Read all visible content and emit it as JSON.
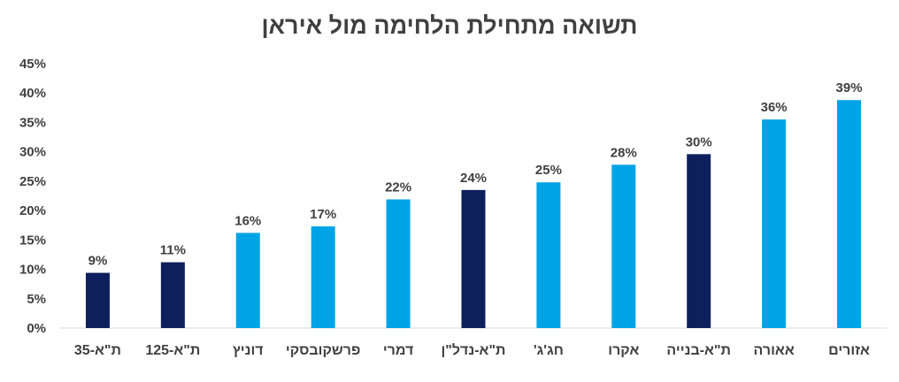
{
  "chart_data": {
    "type": "bar",
    "title": "תשואה מתחילת הלחימה מול איראן",
    "xlabel": "",
    "ylabel": "",
    "ylim": [
      0,
      45
    ],
    "yticks": [
      "0%",
      "5%",
      "10%",
      "15%",
      "20%",
      "25%",
      "30%",
      "35%",
      "40%",
      "45%"
    ],
    "grid": false,
    "legend": "none",
    "categories": [
      "ת\"א-35",
      "ת\"א-125",
      "דוניץ",
      "פרשקובסקי",
      "דמרי",
      "ת\"א-נדל\"ן",
      "חג'ג'",
      "אקרו",
      "ת\"א-בנייה",
      "אאורה",
      "אזורים"
    ],
    "values": [
      9.4,
      11.2,
      16.2,
      17.3,
      21.9,
      23.5,
      24.8,
      27.8,
      29.6,
      35.5,
      38.8
    ],
    "data_labels": [
      "9%",
      "11%",
      "16%",
      "17%",
      "22%",
      "24%",
      "25%",
      "28%",
      "30%",
      "36%",
      "39%"
    ],
    "bar_colors": [
      "#0d1f5c",
      "#0d1f5c",
      "#00a3e6",
      "#00a3e6",
      "#00a3e6",
      "#0d1f5c",
      "#00a3e6",
      "#00a3e6",
      "#0d1f5c",
      "#00a3e6",
      "#00a3e6"
    ]
  }
}
